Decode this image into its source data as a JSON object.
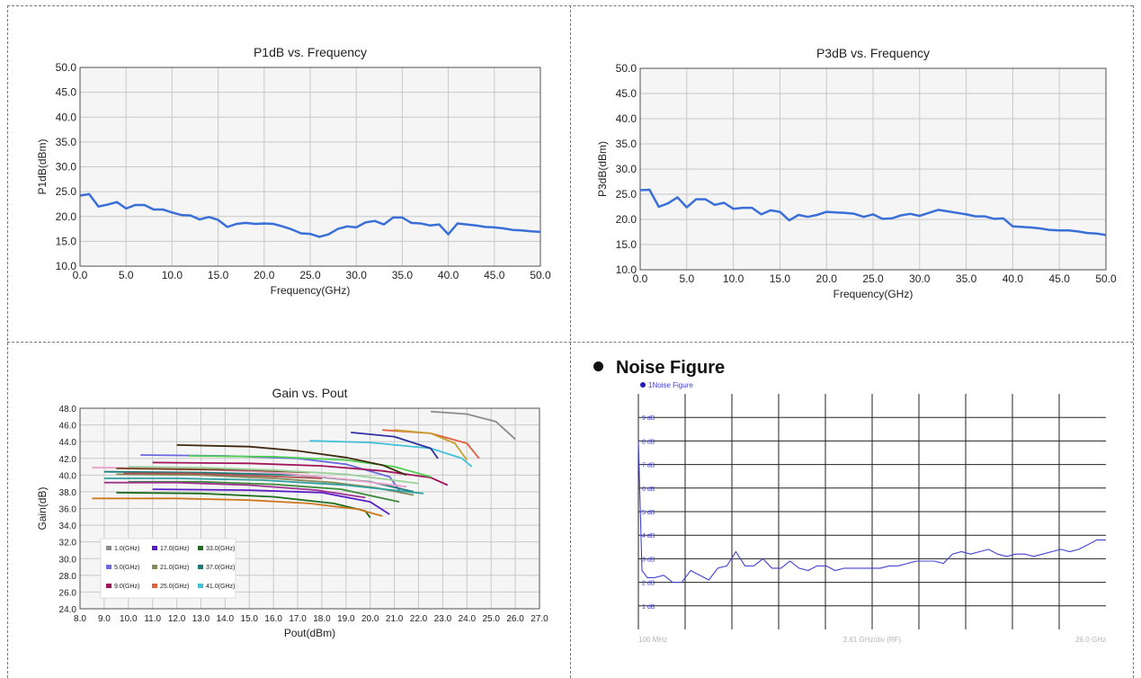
{
  "chart_data": [
    {
      "type": "line",
      "title": "P1dB vs. Frequency",
      "xlabel": "Frequency(GHz)",
      "ylabel": "P1dB(dBm)",
      "xlim": [
        0,
        50
      ],
      "ylim": [
        10,
        50
      ],
      "xticks": [
        "0.0",
        "5.0",
        "10.0",
        "15.0",
        "20.0",
        "25.0",
        "30.0",
        "35.0",
        "40.0",
        "45.0",
        "50.0"
      ],
      "yticks": [
        "10.0",
        "15.0",
        "20.0",
        "25.0",
        "30.0",
        "35.0",
        "40.0",
        "45.0",
        "50.0"
      ],
      "grid": true,
      "color": "#3b6fd8",
      "x": [
        0,
        1,
        2,
        3,
        4,
        5,
        6,
        7,
        8,
        9,
        10,
        11,
        12,
        13,
        14,
        15,
        16,
        17,
        18,
        19,
        20,
        21,
        22,
        23,
        24,
        25,
        26,
        27,
        28,
        29,
        30,
        31,
        32,
        33,
        34,
        35,
        36,
        37,
        38,
        39,
        40,
        41,
        42,
        43,
        44,
        45,
        46,
        47,
        48,
        49,
        50
      ],
      "y": [
        24.2,
        24.5,
        22.0,
        22.4,
        22.9,
        21.6,
        22.3,
        22.3,
        21.4,
        21.4,
        20.8,
        20.3,
        20.2,
        19.4,
        19.9,
        19.3,
        17.9,
        18.5,
        18.7,
        18.5,
        18.6,
        18.5,
        18.0,
        17.4,
        16.6,
        16.5,
        15.9,
        16.4,
        17.5,
        18.0,
        17.8,
        18.8,
        19.1,
        18.4,
        19.8,
        19.8,
        18.7,
        18.6,
        18.2,
        18.4,
        16.4,
        18.6,
        18.4,
        18.2,
        17.9,
        17.8,
        17.6,
        17.3,
        17.2,
        17.0,
        16.9
      ]
    },
    {
      "type": "line",
      "title": "P3dB vs. Frequency",
      "xlabel": "Frequency(GHz)",
      "ylabel": "P3dB(dBm)",
      "xlim": [
        0,
        50
      ],
      "ylim": [
        10,
        50
      ],
      "xticks": [
        "0.0",
        "5.0",
        "10.0",
        "15.0",
        "20.0",
        "25.0",
        "30.0",
        "35.0",
        "40.0",
        "45.0",
        "50.0"
      ],
      "yticks": [
        "10.0",
        "15.0",
        "20.0",
        "25.0",
        "30.0",
        "35.0",
        "40.0",
        "45.0",
        "50.0"
      ],
      "grid": true,
      "color": "#3b6fd8",
      "x": [
        0,
        1,
        2,
        3,
        4,
        5,
        6,
        7,
        8,
        9,
        10,
        11,
        12,
        13,
        14,
        15,
        16,
        17,
        18,
        19,
        20,
        21,
        22,
        23,
        24,
        25,
        26,
        27,
        28,
        29,
        30,
        31,
        32,
        33,
        34,
        35,
        36,
        37,
        38,
        39,
        40,
        41,
        42,
        43,
        44,
        45,
        46,
        47,
        48,
        49,
        50
      ],
      "y": [
        25.8,
        25.9,
        22.5,
        23.2,
        24.4,
        22.4,
        24.0,
        24.0,
        22.9,
        23.3,
        22.1,
        22.3,
        22.3,
        21.0,
        21.8,
        21.5,
        19.8,
        20.9,
        20.5,
        20.9,
        21.5,
        21.4,
        21.3,
        21.1,
        20.5,
        21.0,
        20.1,
        20.2,
        20.8,
        21.1,
        20.7,
        21.3,
        21.9,
        21.6,
        21.3,
        21.0,
        20.6,
        20.6,
        20.1,
        20.2,
        18.6,
        18.5,
        18.4,
        18.2,
        17.9,
        17.8,
        17.8,
        17.6,
        17.3,
        17.2,
        16.9
      ]
    },
    {
      "type": "line",
      "title": "Gain vs. Pout",
      "xlabel": "Pout(dBm)",
      "ylabel": "Gain(dB)",
      "xlim": [
        8,
        27
      ],
      "ylim": [
        24,
        48
      ],
      "xticks": [
        "8.0",
        "9.0",
        "10.0",
        "11.0",
        "12.0",
        "13.0",
        "14.0",
        "15.0",
        "16.0",
        "17.0",
        "18.0",
        "19.0",
        "20.0",
        "21.0",
        "22.0",
        "23.0",
        "24.0",
        "25.0",
        "26.0",
        "27.0"
      ],
      "yticks": [
        "24.0",
        "26.0",
        "28.0",
        "30.0",
        "32.0",
        "34.0",
        "36.0",
        "38.0",
        "40.0",
        "42.0",
        "44.0",
        "46.0",
        "48.0"
      ],
      "grid": true,
      "legend": "bottom-left",
      "series": [
        {
          "name": "1.0(GHz)",
          "color": "#8c8c8c",
          "x": [
            22.5,
            24,
            25.2,
            26
          ],
          "y": [
            47.6,
            47.3,
            46.4,
            44.3
          ]
        },
        {
          "name": "5.0(GHz)",
          "color": "#6a6ae0",
          "x": [
            10.5,
            14,
            17,
            19,
            20.8,
            21.3
          ],
          "y": [
            42.4,
            42.3,
            42.0,
            41.3,
            39.8,
            37.8
          ]
        },
        {
          "name": "9.0(GHz)",
          "color": "#a0145a",
          "x": [
            11,
            15,
            18,
            20.5,
            22.5,
            23.2
          ],
          "y": [
            41.5,
            41.4,
            41.1,
            40.5,
            39.7,
            38.8
          ]
        },
        {
          "name": "17.0(GHz)",
          "color": "#5a1ec8",
          "x": [
            11,
            15,
            18,
            20,
            20.8
          ],
          "y": [
            38.3,
            38.2,
            37.9,
            36.8,
            35.3
          ]
        },
        {
          "name": "21.0(GHz)",
          "color": "#8a8a5a",
          "x": [
            9.5,
            13,
            16,
            18.5,
            20.2,
            21.8
          ],
          "y": [
            40.1,
            40.0,
            39.6,
            39.1,
            38.5,
            37.6
          ]
        },
        {
          "name": "25.0(GHz)",
          "color": "#e06040",
          "x": [
            20.5,
            22.5,
            24,
            24.5
          ],
          "y": [
            45.4,
            45.0,
            43.8,
            42.0
          ]
        },
        {
          "name": "33.0(GHz)",
          "color": "#1e6e1e",
          "x": [
            9.5,
            13,
            16,
            18.5,
            19.8,
            20
          ],
          "y": [
            37.9,
            37.8,
            37.4,
            36.6,
            35.7,
            34.9
          ]
        },
        {
          "name": "37.0(GHz)",
          "color": "#1e7a7a",
          "x": [
            9,
            13,
            17,
            20,
            21.8
          ],
          "y": [
            40.4,
            40.3,
            40.0,
            39.2,
            38.0
          ]
        },
        {
          "name": "41.0(GHz)",
          "color": "#40c0d8",
          "x": [
            17.5,
            20,
            22.5,
            23.8,
            24.2
          ],
          "y": [
            44.1,
            43.9,
            43.2,
            42.0,
            41.0
          ]
        },
        {
          "name": "",
          "color": "#c8a030",
          "x": [
            21,
            22.5,
            23.5,
            24
          ],
          "y": [
            45.4,
            45.0,
            43.8,
            41.8
          ]
        },
        {
          "name": "",
          "color": "#3030a0",
          "x": [
            19.2,
            21,
            22.5,
            22.8
          ],
          "y": [
            45.1,
            44.6,
            43.2,
            42.0
          ]
        },
        {
          "name": "",
          "color": "#50d050",
          "x": [
            12.5,
            16,
            19,
            21,
            22.5
          ],
          "y": [
            42.3,
            42.2,
            41.8,
            41.0,
            39.8
          ]
        },
        {
          "name": "",
          "color": "#e8a0c8",
          "x": [
            8.5,
            12,
            16,
            19,
            21.5
          ],
          "y": [
            40.9,
            40.8,
            40.3,
            39.5,
            38.6
          ]
        },
        {
          "name": "",
          "color": "#3f2a10",
          "x": [
            12,
            15,
            17,
            19,
            20.5,
            21.5
          ],
          "y": [
            43.6,
            43.4,
            42.9,
            42.1,
            41.2,
            40.0
          ]
        },
        {
          "name": "",
          "color": "#d07820",
          "x": [
            8.5,
            12,
            15,
            17.5,
            19.5,
            20.5
          ],
          "y": [
            37.2,
            37.2,
            37.0,
            36.6,
            35.9,
            35.1
          ]
        },
        {
          "name": "",
          "color": "#3a8a3a",
          "x": [
            10,
            13,
            16,
            18.8,
            21.2
          ],
          "y": [
            39.2,
            39.2,
            38.9,
            38.3,
            36.8
          ]
        },
        {
          "name": "",
          "color": "#a03090",
          "x": [
            9,
            12,
            15,
            17.8,
            19.8
          ],
          "y": [
            39.1,
            39.1,
            38.8,
            38.2,
            37.3
          ]
        },
        {
          "name": "",
          "color": "#7a4020",
          "x": [
            9.5,
            12,
            15,
            17.5
          ],
          "y": [
            40.8,
            40.7,
            40.6,
            40.3
          ]
        },
        {
          "name": "",
          "color": "#9ad09a",
          "x": [
            10,
            13,
            16,
            19,
            22
          ],
          "y": [
            41.0,
            40.9,
            40.6,
            40.1,
            39.0
          ]
        },
        {
          "name": "",
          "color": "#b05050",
          "x": [
            9.8,
            12.5,
            15.5,
            18
          ],
          "y": [
            40.2,
            40.2,
            39.9,
            39.6
          ]
        },
        {
          "name": "",
          "color": "#30a0a0",
          "x": [
            9,
            12,
            15.5,
            19,
            22.2
          ],
          "y": [
            39.6,
            39.6,
            39.4,
            38.8,
            37.8
          ]
        }
      ]
    },
    {
      "type": "line",
      "title": "",
      "series_label": "1Noise Figure",
      "xlabel": "2.61 GHz/div (RF)",
      "x_start_label": "100 MHz",
      "x_end_label": "26.0 GHz",
      "xlim": [
        0.1,
        26.0
      ],
      "ylim": [
        0,
        10
      ],
      "yticks": [
        "1 dB",
        "2 dB",
        "3 dB",
        "4 dB",
        "5 dB",
        "6 dB",
        "7 dB",
        "8 dB",
        "9 dB"
      ],
      "grid": true,
      "color": "#4040d0",
      "x": [
        0.1,
        0.3,
        0.6,
        1.0,
        1.5,
        2.0,
        2.5,
        3.0,
        3.5,
        4.0,
        4.5,
        5.0,
        5.5,
        6.0,
        6.5,
        7.0,
        7.5,
        8.0,
        8.5,
        9.0,
        9.5,
        10.0,
        10.5,
        11.0,
        11.5,
        12.0,
        12.5,
        13.0,
        13.5,
        14.0,
        14.5,
        15.0,
        15.5,
        16.0,
        16.5,
        17.0,
        17.5,
        18.0,
        18.5,
        19.0,
        19.5,
        20.0,
        20.5,
        21.0,
        21.5,
        22.0,
        22.5,
        23.0,
        23.5,
        24.0,
        24.5,
        25.0,
        25.5,
        26.0
      ],
      "y": [
        8.0,
        2.5,
        2.2,
        2.2,
        2.3,
        2.0,
        2.0,
        2.5,
        2.3,
        2.1,
        2.6,
        2.7,
        3.3,
        2.7,
        2.7,
        3.0,
        2.6,
        2.6,
        2.9,
        2.6,
        2.5,
        2.7,
        2.7,
        2.5,
        2.6,
        2.6,
        2.6,
        2.6,
        2.6,
        2.7,
        2.7,
        2.8,
        2.9,
        2.9,
        2.9,
        2.8,
        3.2,
        3.3,
        3.2,
        3.3,
        3.4,
        3.2,
        3.1,
        3.2,
        3.2,
        3.1,
        3.2,
        3.3,
        3.4,
        3.3,
        3.4,
        3.6,
        3.8,
        3.8
      ]
    }
  ],
  "noise_section": {
    "heading": "Noise Figure"
  },
  "colors": {
    "series_line": "#3b6fd8",
    "plot_bg": "#f5f5f5",
    "grid": "#c8c8c8",
    "axis": "#505050"
  }
}
